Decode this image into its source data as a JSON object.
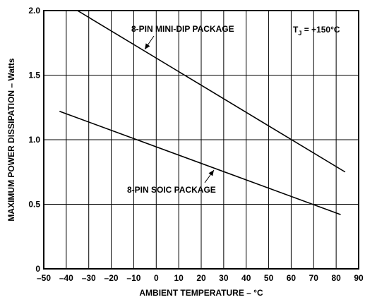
{
  "chart_data": {
    "type": "line",
    "xlabel": "AMBIENT TEMPERATURE – °C",
    "ylabel": "MAXIMUM POWER DISSIPATION – Watts",
    "xlim": [
      -50,
      90
    ],
    "ylim": [
      0,
      2.0
    ],
    "x_ticks": [
      "–50",
      "–40",
      "–30",
      "–20",
      "–10",
      "0",
      "10",
      "20",
      "30",
      "40",
      "50",
      "60",
      "70",
      "80",
      "90"
    ],
    "y_ticks": [
      "0",
      "0.5",
      "1.0",
      "1.5",
      "2.0"
    ],
    "grid": true,
    "series": [
      {
        "name": "8-PIN MINI-DIP PACKAGE",
        "x": [
          -35,
          84
        ],
        "y": [
          2.0,
          0.75
        ]
      },
      {
        "name": "8-PIN SOIC PACKAGE",
        "x": [
          -43,
          82
        ],
        "y": [
          1.22,
          0.42
        ]
      }
    ],
    "annotations": {
      "tj_prefix": "T",
      "tj_sub": "J",
      "tj_rest": " = +150°C"
    }
  }
}
